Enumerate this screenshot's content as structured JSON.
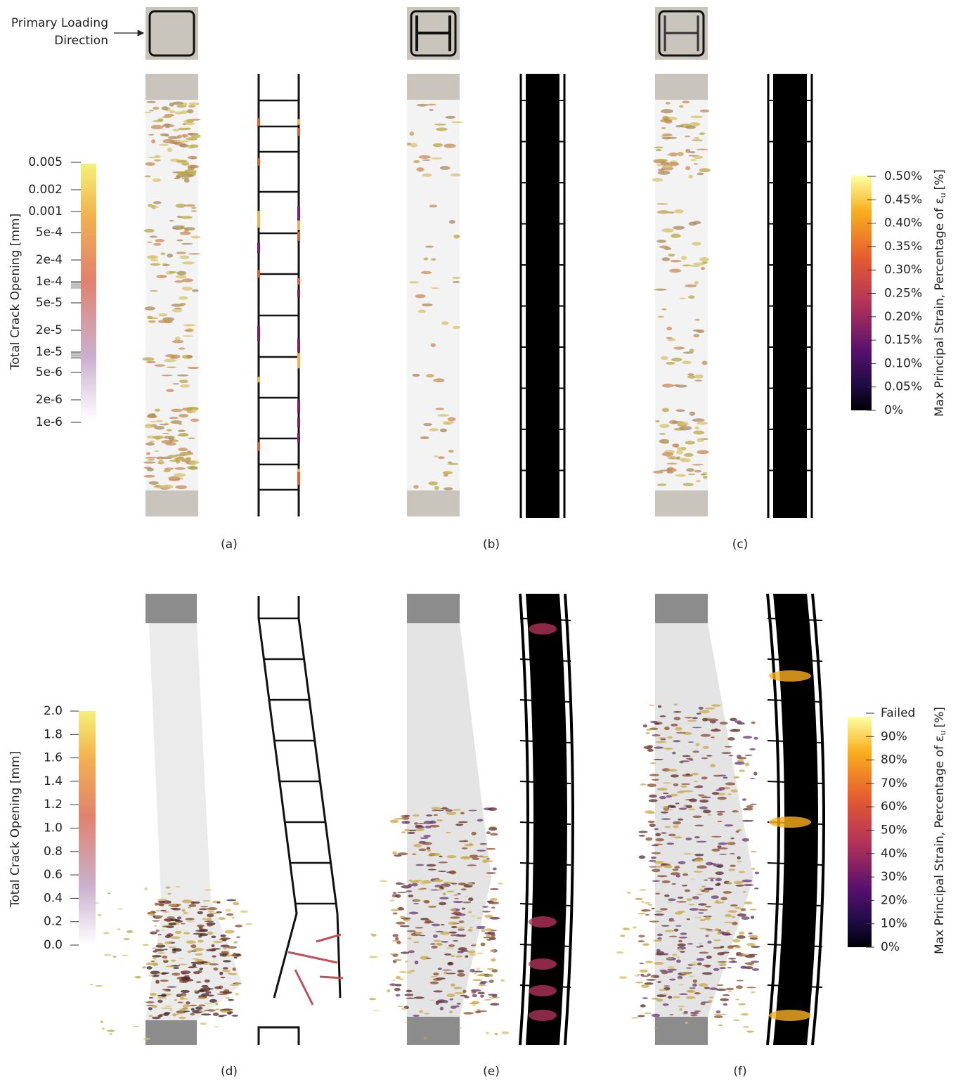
{
  "header": {
    "loading_label": [
      "Primary Loading",
      "Direction"
    ]
  },
  "top_crack_legend": {
    "title": "Total Crack Opening [mm]",
    "ticks": [
      "0.005",
      "0.002",
      "0.001",
      "5e-4",
      "2e-4",
      "1e-4",
      "5e-5",
      "2e-5",
      "1e-5",
      "5e-6",
      "2e-6",
      "1e-6"
    ]
  },
  "top_strain_legend": {
    "title": "Max Principal Strain, Percentage of ε",
    "title_subscript": "u",
    "title_unit": "[%]",
    "ticks": [
      "0.50%",
      "0.45%",
      "0.40%",
      "0.35%",
      "0.30%",
      "0.25%",
      "0.20%",
      "0.15%",
      "0.10%",
      "0.05%",
      "0%"
    ]
  },
  "bottom_crack_legend": {
    "title": "Total Crack Opening [mm]",
    "ticks": [
      "2.0",
      "1.8",
      "1.6",
      "1.4",
      "1.2",
      "1.0",
      "0.8",
      "0.6",
      "0.4",
      "0.2",
      "0.0"
    ]
  },
  "bottom_strain_legend": {
    "title": "Max Principal Strain, Percentage of ε",
    "title_subscript": "u",
    "title_unit": "[%]",
    "ticks": [
      "Failed",
      "90%",
      "80%",
      "70%",
      "60%",
      "50%",
      "40%",
      "30%",
      "20%",
      "10%",
      "0%"
    ]
  },
  "panels": [
    "(a)",
    "(b)",
    "(c)",
    "(d)",
    "(e)",
    "(f)"
  ]
}
